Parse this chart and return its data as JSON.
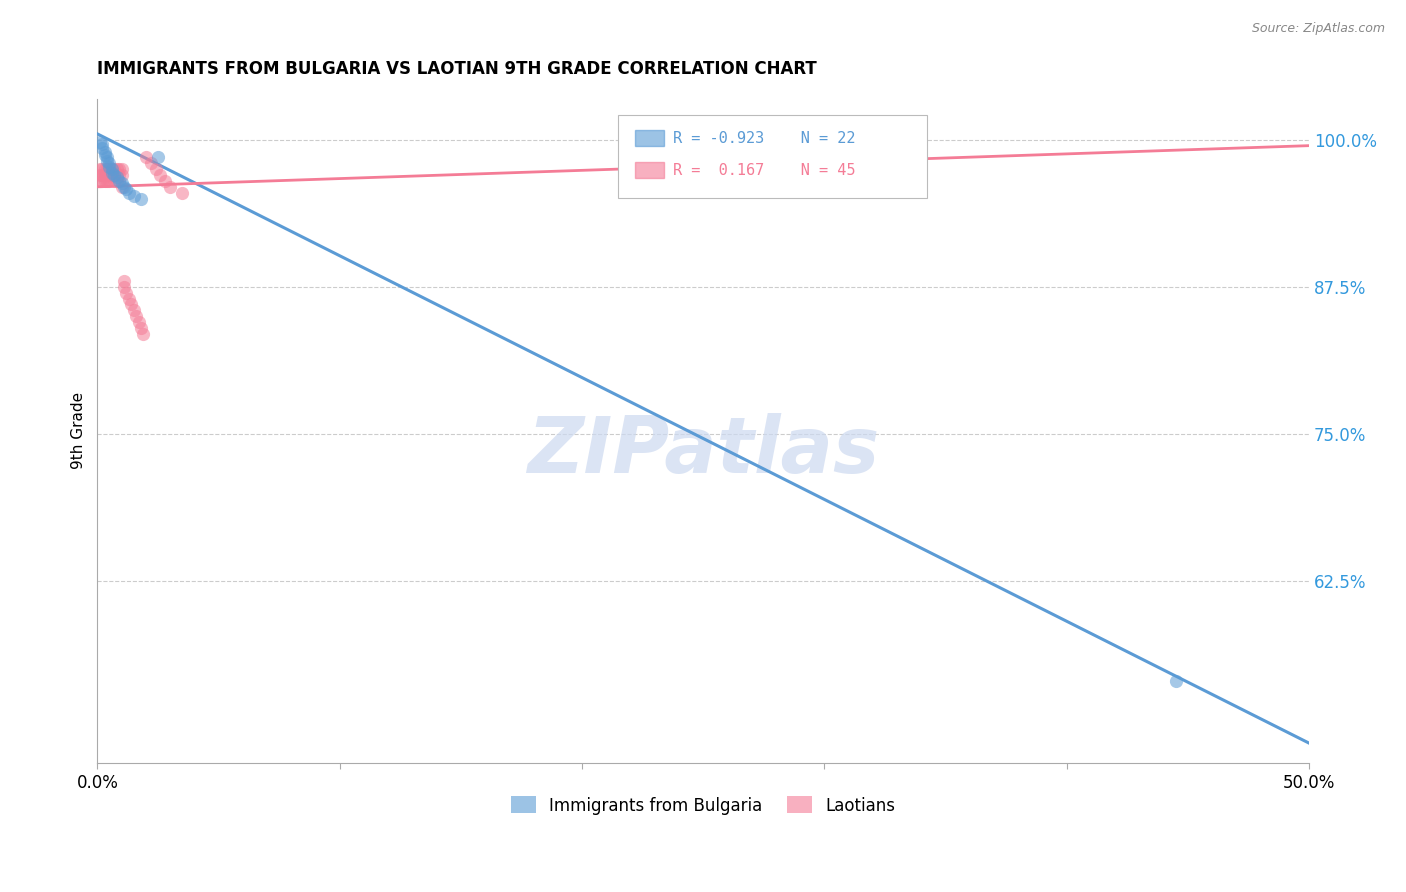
{
  "title": "IMMIGRANTS FROM BULGARIA VS LAOTIAN 9TH GRADE CORRELATION CHART",
  "source": "Source: ZipAtlas.com",
  "ylabel": "9th Grade",
  "watermark": "ZIPatlas",
  "xlim": [
    0.0,
    0.5
  ],
  "ylim": [
    0.47,
    1.035
  ],
  "yticks": [
    0.625,
    0.75,
    0.875,
    1.0
  ],
  "yticklabels": [
    "62.5%",
    "75.0%",
    "87.5%",
    "100.0%"
  ],
  "xtick_show": [
    "0.0%",
    "50.0%"
  ],
  "blue_color": "#5b9bd5",
  "pink_color": "#f47c96",
  "scatter_alpha": 0.55,
  "scatter_size": 90,
  "grid_color": "#cccccc",
  "blue_R": "-0.923",
  "blue_N": "22",
  "pink_R": "0.167",
  "pink_N": "45",
  "blue_label": "Immigrants from Bulgaria",
  "pink_label": "Laotians",
  "blue_line_x0": 0.0,
  "blue_line_x1": 0.5,
  "blue_line_y0": 1.005,
  "blue_line_y1": 0.487,
  "pink_line_x0": 0.0,
  "pink_line_x1": 0.5,
  "pink_line_y0": 0.96,
  "pink_line_y1": 0.995,
  "blue_x": [
    0.001,
    0.002,
    0.002,
    0.003,
    0.003,
    0.004,
    0.004,
    0.005,
    0.005,
    0.006,
    0.006,
    0.007,
    0.008,
    0.009,
    0.01,
    0.011,
    0.012,
    0.013,
    0.015,
    0.018,
    0.025,
    0.445
  ],
  "blue_y": [
    0.998,
    0.996,
    0.993,
    0.99,
    0.987,
    0.985,
    0.982,
    0.98,
    0.977,
    0.975,
    0.972,
    0.97,
    0.968,
    0.965,
    0.963,
    0.96,
    0.958,
    0.955,
    0.952,
    0.95,
    0.985,
    0.54
  ],
  "pink_x": [
    0.001,
    0.001,
    0.001,
    0.002,
    0.002,
    0.002,
    0.003,
    0.003,
    0.003,
    0.004,
    0.004,
    0.004,
    0.005,
    0.005,
    0.005,
    0.006,
    0.006,
    0.007,
    0.007,
    0.007,
    0.008,
    0.008,
    0.008,
    0.009,
    0.009,
    0.01,
    0.01,
    0.01,
    0.011,
    0.011,
    0.012,
    0.013,
    0.014,
    0.015,
    0.016,
    0.017,
    0.018,
    0.019,
    0.02,
    0.022,
    0.024,
    0.026,
    0.028,
    0.03,
    0.035
  ],
  "pink_y": [
    0.975,
    0.97,
    0.965,
    0.975,
    0.97,
    0.965,
    0.975,
    0.97,
    0.965,
    0.975,
    0.97,
    0.965,
    0.975,
    0.97,
    0.965,
    0.975,
    0.97,
    0.975,
    0.97,
    0.965,
    0.975,
    0.97,
    0.965,
    0.975,
    0.97,
    0.975,
    0.97,
    0.96,
    0.88,
    0.875,
    0.87,
    0.865,
    0.86,
    0.855,
    0.85,
    0.845,
    0.84,
    0.835,
    0.985,
    0.98,
    0.975,
    0.97,
    0.965,
    0.96,
    0.955
  ]
}
